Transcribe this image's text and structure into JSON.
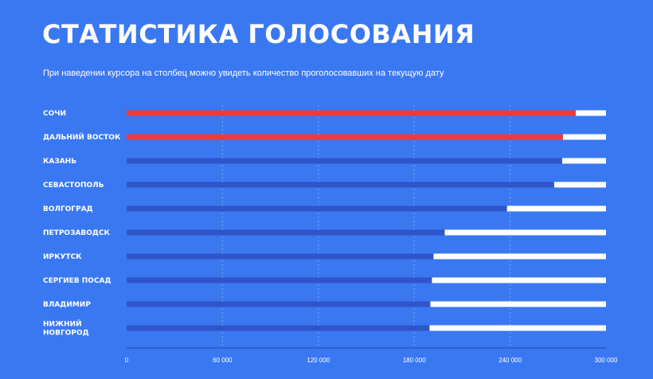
{
  "header": {
    "title": "СТАТИСТИКА ГОЛОСОВАНИЯ",
    "subtitle": "При наведении курсора на столбец можно увидеть количество проголосовавших на текущую дату"
  },
  "colors": {
    "background": "#3a78f2",
    "bar_leader": "#ec3b3b",
    "bar_default": "#2f55c8",
    "bar_remainder": "#ffffff",
    "gridline": "#7fa2f0",
    "axis_line": "#2a50c0"
  },
  "chart_data": {
    "type": "bar",
    "orientation": "horizontal",
    "stacked": true,
    "categories": [
      "СОЧИ",
      "ДАЛЬНИЙ ВОСТОК",
      "КАЗАНЬ",
      "СЕВАСТОПОЛЬ",
      "ВОЛГОГРАД",
      "ПЕТРОЗАВОДСК",
      "ИРКУТСК",
      "СЕРГИЕВ ПОСАД",
      "ВЛАДИМИР",
      "НИЖНИЙ НОВГОРОД"
    ],
    "category_lines": [
      [
        "СОЧИ"
      ],
      [
        "ДАЛЬНИЙ ВОСТОК"
      ],
      [
        "КАЗАНЬ"
      ],
      [
        "СЕВАСТОПОЛЬ"
      ],
      [
        "ВОЛГОГРАД"
      ],
      [
        "ПЕТРОЗАВОДСК"
      ],
      [
        "ИРКУТСК"
      ],
      [
        "СЕРГИЕВ ПОСАД"
      ],
      [
        "ВЛАДИМИР"
      ],
      [
        "НИЖНИЙ",
        "НОВГОРОД"
      ]
    ],
    "values": [
      281000,
      273000,
      272500,
      267500,
      238000,
      199000,
      192000,
      191000,
      190000,
      189500
    ],
    "highlight_count": 2,
    "xlim": [
      0,
      300000
    ],
    "xticks": [
      0,
      60000,
      120000,
      180000,
      240000,
      300000
    ],
    "xtick_labels": [
      "0",
      "60 000",
      "120 000",
      "180 000",
      "240 000",
      "300 000"
    ],
    "grid": true,
    "title": "СТАТИСТИКА ГОЛОСОВАНИЯ",
    "xlabel": "",
    "ylabel": ""
  }
}
